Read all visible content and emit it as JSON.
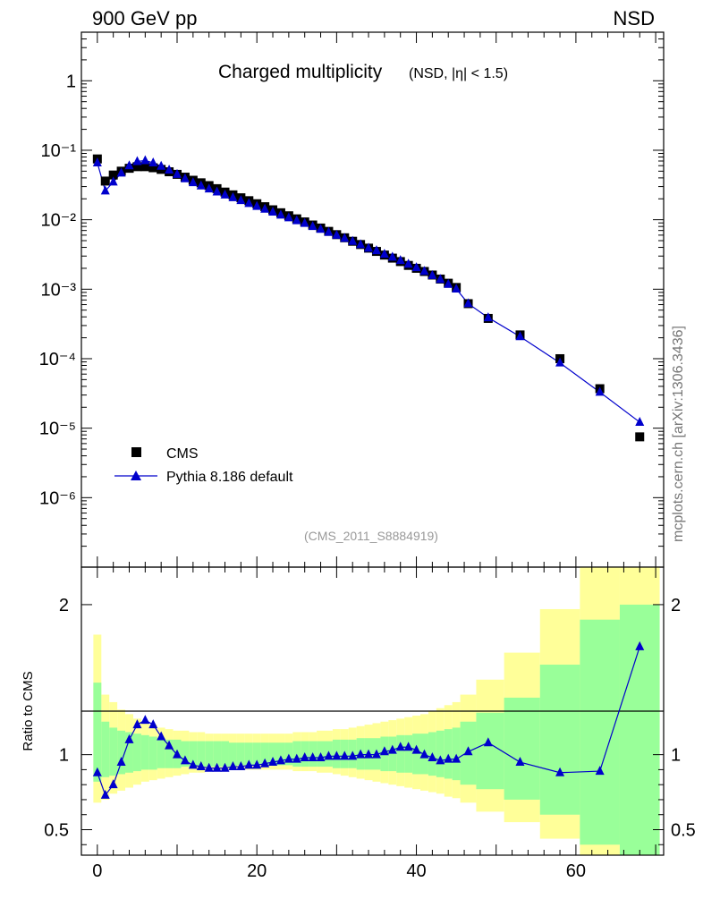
{
  "header": {
    "left": "900 GeV pp",
    "right": "NSD"
  },
  "side_label": "mcplots.cern.ch [arXiv:1306.3436]",
  "analysis_id": "(CMS_2011_S8884919)",
  "colors": {
    "data": "#000000",
    "mc": "#0000cc",
    "band_inner": "#99ff99",
    "band_outer": "#ffff99"
  },
  "chart_data": [
    {
      "type": "scatter",
      "title": "Charged multiplicity",
      "subtitle": "(NSD, |η| < 1.5)",
      "xlim": [
        -2,
        71
      ],
      "ylim": [
        1e-07,
        5
      ],
      "yscale": "log",
      "ytick_labels": [
        "10⁻⁶",
        "10⁻⁵",
        "10⁻⁴",
        "10⁻³",
        "10⁻²",
        "10⁻¹",
        "1"
      ],
      "grid": false,
      "legend_position": "bottom-left",
      "series": [
        {
          "name": "CMS",
          "marker": "square",
          "x": [
            0,
            1,
            2,
            3,
            4,
            5,
            6,
            7,
            8,
            9,
            10,
            11,
            12,
            13,
            14,
            15,
            16,
            17,
            18,
            19,
            20,
            21,
            22,
            23,
            24,
            25,
            26,
            27,
            28,
            29,
            30,
            31,
            32,
            33,
            34,
            35,
            36,
            37,
            38,
            39,
            40,
            41,
            42,
            43,
            44,
            45,
            46.5,
            49,
            53,
            58,
            63,
            68
          ],
          "values": [
            0.075,
            0.036,
            0.044,
            0.05,
            0.055,
            0.058,
            0.058,
            0.056,
            0.053,
            0.049,
            0.045,
            0.041,
            0.037,
            0.034,
            0.031,
            0.028,
            0.025,
            0.0228,
            0.0207,
            0.0188,
            0.017,
            0.0154,
            0.0139,
            0.0126,
            0.0114,
            0.0103,
            0.0093,
            0.0084,
            0.0076,
            0.0068,
            0.0061,
            0.0055,
            0.0049,
            0.0044,
            0.0039,
            0.0035,
            0.0031,
            0.0028,
            0.0025,
            0.0022,
            0.002,
            0.0018,
            0.0016,
            0.0014,
            0.00122,
            0.00106,
            0.00062,
            0.00038,
            0.00022,
            0.0001,
            3.7e-05,
            7.5e-06
          ]
        },
        {
          "name": "Pythia 8.186 default",
          "marker": "triangle",
          "x": [
            0,
            1,
            2,
            3,
            4,
            5,
            6,
            7,
            8,
            9,
            10,
            11,
            12,
            13,
            14,
            15,
            16,
            17,
            18,
            19,
            20,
            21,
            22,
            23,
            24,
            25,
            26,
            27,
            28,
            29,
            30,
            31,
            32,
            33,
            34,
            35,
            36,
            37,
            38,
            39,
            40,
            41,
            42,
            43,
            44,
            45,
            46.5,
            49,
            53,
            58,
            63,
            68
          ],
          "values": [
            0.066,
            0.026,
            0.035,
            0.047,
            0.06,
            0.069,
            0.071,
            0.066,
            0.059,
            0.052,
            0.045,
            0.039,
            0.0342,
            0.0308,
            0.0278,
            0.0252,
            0.0228,
            0.0208,
            0.0189,
            0.0172,
            0.0156,
            0.0142,
            0.0129,
            0.0117,
            0.0107,
            0.0097,
            0.0089,
            0.008,
            0.0073,
            0.0066,
            0.006,
            0.0054,
            0.0049,
            0.0044,
            0.0039,
            0.0036,
            0.0032,
            0.0029,
            0.0026,
            0.0023,
            0.00205,
            0.00181,
            0.00158,
            0.00139,
            0.00118,
            0.00101,
            0.00062,
            0.00039,
            0.000208,
            8.7e-05,
            3.3e-05,
            1.22e-05
          ]
        }
      ]
    },
    {
      "type": "line",
      "ylabel": "Ratio to CMS",
      "xlim": [
        -2,
        71
      ],
      "ylim": [
        0.33,
        2.25
      ],
      "x_ticks": [
        0,
        20,
        40,
        60
      ],
      "y_ticks": [
        0.5,
        1,
        2
      ],
      "reference_line": 1,
      "x": [
        0,
        1,
        2,
        3,
        4,
        5,
        6,
        7,
        8,
        9,
        10,
        11,
        12,
        13,
        14,
        15,
        16,
        17,
        18,
        19,
        20,
        21,
        22,
        23,
        24,
        25,
        26,
        27,
        28,
        29,
        30,
        31,
        32,
        33,
        34,
        35,
        36,
        37,
        38,
        39,
        40,
        41,
        42,
        43,
        44,
        45,
        46.5,
        49,
        53,
        58,
        63,
        68
      ],
      "values": [
        0.88,
        0.73,
        0.8,
        0.95,
        1.1,
        1.2,
        1.23,
        1.2,
        1.12,
        1.06,
        1.0,
        0.96,
        0.93,
        0.92,
        0.91,
        0.91,
        0.91,
        0.92,
        0.92,
        0.93,
        0.93,
        0.94,
        0.95,
        0.96,
        0.97,
        0.97,
        0.98,
        0.98,
        0.98,
        0.99,
        0.99,
        0.99,
        0.99,
        1.0,
        1.0,
        1.0,
        1.02,
        1.03,
        1.05,
        1.05,
        1.03,
        1.0,
        0.98,
        0.96,
        0.97,
        0.97,
        1.02,
        1.08,
        0.95,
        0.88,
        0.89,
        1.72
      ],
      "band_edges": [
        -0.5,
        0.5,
        1.5,
        2.5,
        3.5,
        4.5,
        5.5,
        6.5,
        7.5,
        8.5,
        9.5,
        10.5,
        11.5,
        12.5,
        13.5,
        14.5,
        15.5,
        16.5,
        17.5,
        18.5,
        19.5,
        20.5,
        21.5,
        22.5,
        23.5,
        24.5,
        25.5,
        26.5,
        27.5,
        28.5,
        29.5,
        30.5,
        31.5,
        32.5,
        33.5,
        34.5,
        35.5,
        36.5,
        37.5,
        38.5,
        39.5,
        40.5,
        41.5,
        42.5,
        43.5,
        44.5,
        45.5,
        47.5,
        51,
        55.5,
        60.5,
        65.5,
        70.5
      ],
      "band_inner": {
        "lo": [
          0.82,
          0.85,
          0.86,
          0.87,
          0.88,
          0.89,
          0.9,
          0.9,
          0.91,
          0.91,
          0.91,
          0.92,
          0.92,
          0.92,
          0.92,
          0.92,
          0.92,
          0.92,
          0.93,
          0.93,
          0.93,
          0.93,
          0.93,
          0.93,
          0.93,
          0.92,
          0.92,
          0.92,
          0.92,
          0.92,
          0.91,
          0.91,
          0.91,
          0.9,
          0.9,
          0.9,
          0.89,
          0.89,
          0.88,
          0.88,
          0.87,
          0.87,
          0.86,
          0.85,
          0.84,
          0.83,
          0.8,
          0.77,
          0.7,
          0.6,
          0.4,
          0.3
        ],
        "hi": [
          1.48,
          1.22,
          1.18,
          1.16,
          1.15,
          1.14,
          1.13,
          1.12,
          1.11,
          1.1,
          1.1,
          1.09,
          1.09,
          1.09,
          1.09,
          1.09,
          1.09,
          1.08,
          1.08,
          1.08,
          1.08,
          1.08,
          1.08,
          1.08,
          1.08,
          1.09,
          1.09,
          1.09,
          1.09,
          1.09,
          1.1,
          1.1,
          1.1,
          1.11,
          1.11,
          1.11,
          1.12,
          1.12,
          1.13,
          1.13,
          1.14,
          1.14,
          1.15,
          1.16,
          1.17,
          1.18,
          1.22,
          1.28,
          1.38,
          1.6,
          1.9,
          2.0
        ]
      },
      "band_outer": {
        "lo": [
          0.68,
          0.7,
          0.74,
          0.76,
          0.78,
          0.8,
          0.82,
          0.83,
          0.84,
          0.85,
          0.86,
          0.87,
          0.88,
          0.88,
          0.89,
          0.89,
          0.9,
          0.9,
          0.9,
          0.9,
          0.9,
          0.9,
          0.9,
          0.9,
          0.9,
          0.89,
          0.89,
          0.89,
          0.88,
          0.88,
          0.87,
          0.86,
          0.85,
          0.84,
          0.83,
          0.82,
          0.81,
          0.8,
          0.79,
          0.78,
          0.77,
          0.76,
          0.75,
          0.74,
          0.72,
          0.71,
          0.68,
          0.62,
          0.55,
          0.44,
          0.3,
          0.3
        ],
        "hi": [
          1.8,
          1.4,
          1.35,
          1.3,
          1.27,
          1.24,
          1.22,
          1.2,
          1.18,
          1.17,
          1.16,
          1.16,
          1.15,
          1.15,
          1.14,
          1.14,
          1.14,
          1.14,
          1.14,
          1.14,
          1.14,
          1.14,
          1.14,
          1.14,
          1.14,
          1.15,
          1.15,
          1.15,
          1.16,
          1.16,
          1.17,
          1.17,
          1.18,
          1.19,
          1.2,
          1.21,
          1.22,
          1.23,
          1.24,
          1.25,
          1.26,
          1.27,
          1.29,
          1.31,
          1.33,
          1.35,
          1.4,
          1.5,
          1.68,
          1.97,
          2.3,
          2.3
        ]
      }
    }
  ]
}
